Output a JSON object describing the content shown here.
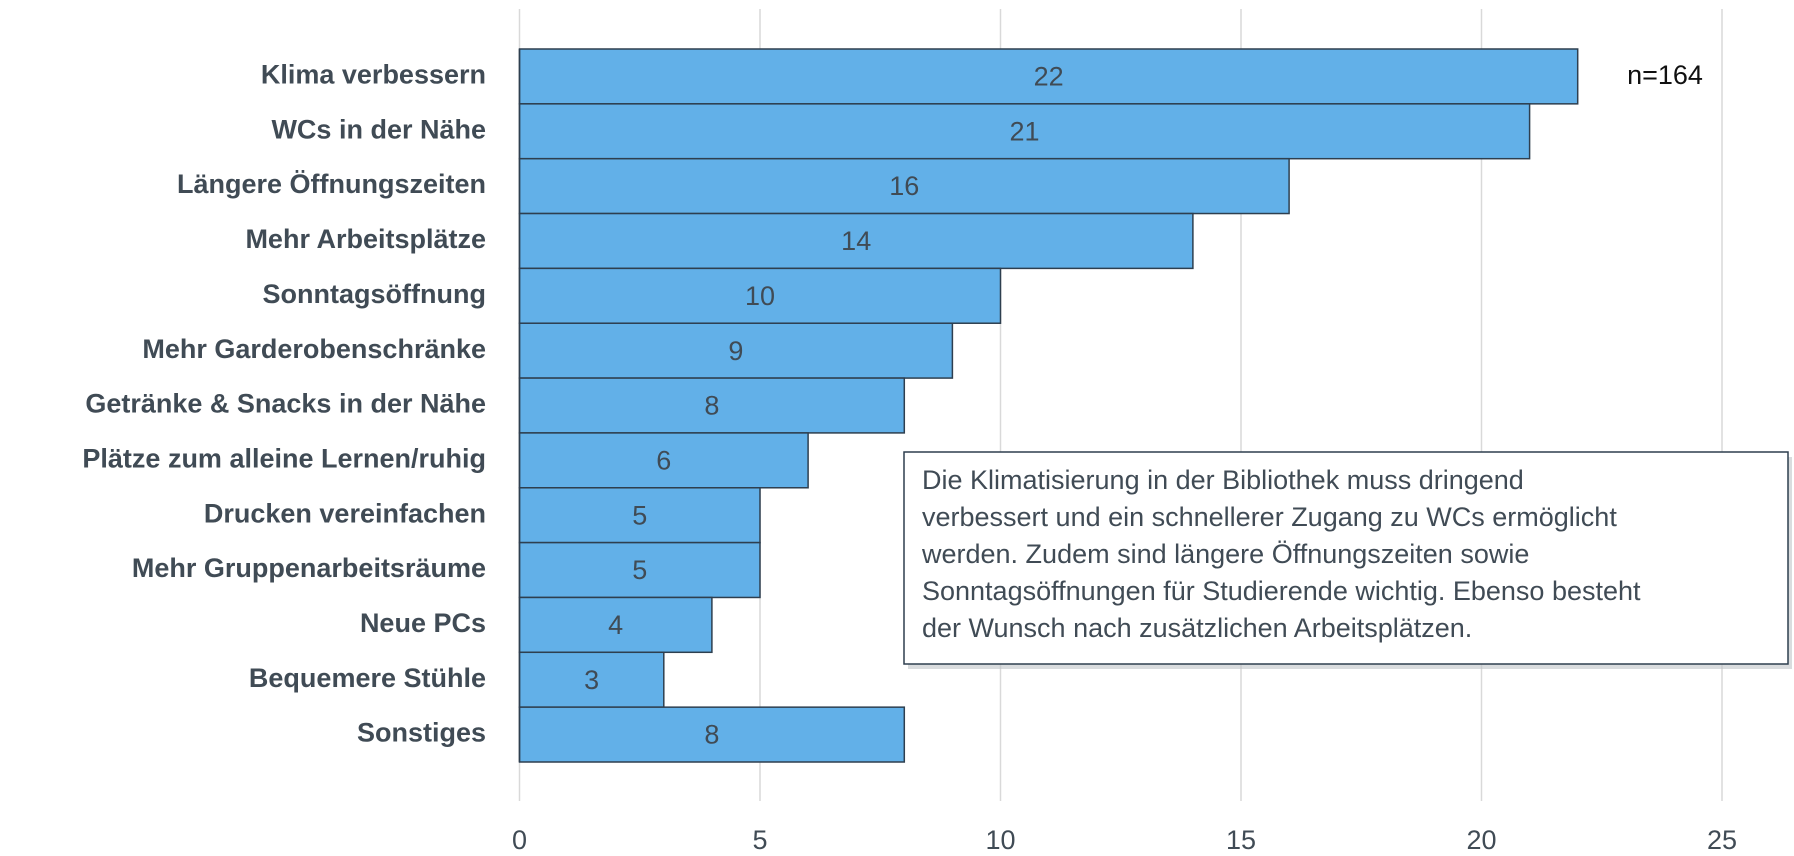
{
  "chart_data": {
    "type": "barh",
    "categories": [
      "Klima verbessern",
      "WCs in der Nähe",
      "Längere Öffnungszeiten",
      "Mehr Arbeitsplätze",
      "Sonntagsöffnung",
      "Mehr Garderobenschränke",
      "Getränke & Snacks in der Nähe",
      "Plätze zum alleine Lernen/ruhig",
      "Drucken vereinfachen",
      "Mehr Gruppenarbeitsräume",
      "Neue PCs",
      "Bequemere Stühle",
      "Sonstiges"
    ],
    "values": [
      22,
      21,
      16,
      14,
      10,
      9,
      8,
      6,
      5,
      5,
      4,
      3,
      8
    ],
    "color": "#62b0e8",
    "xlim": [
      0,
      25
    ],
    "xticks": [
      0,
      5,
      10,
      15,
      20,
      25
    ],
    "grid": true,
    "sample_note": "n=164",
    "annotation": [
      "Die Klimatisierung in der Bibliothek muss dringend",
      "verbessert und ein schnellerer Zugang zu WCs ermöglicht",
      "werden. Zudem sind längere Öffnungszeiten sowie",
      "Sonntagsöffnungen für Studierende wichtig. Ebenso besteht",
      "der Wunsch nach zusätzlichen Arbeitsplätzen."
    ]
  }
}
